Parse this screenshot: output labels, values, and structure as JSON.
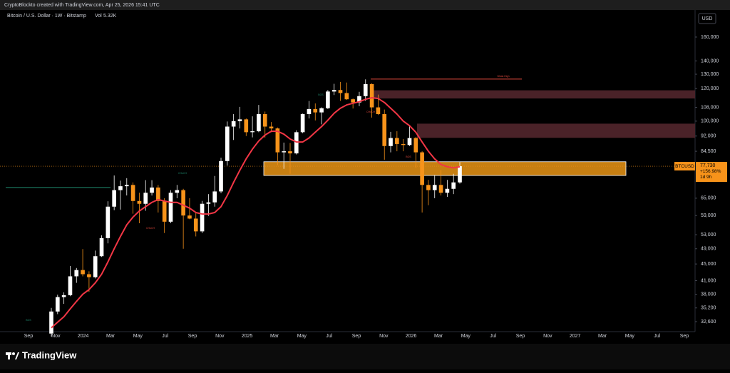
{
  "header": {
    "credit": "CryptoBlockto created with TradingView.com, Apr 25, 2026 15:41 UTC"
  },
  "footer": {
    "brand": "TradingView"
  },
  "chart_data": {
    "type": "candlestick",
    "title": "Bitcoin / U.S. Dollar · 1W · Bitstamp",
    "volume_label": "Vol",
    "volume_value": "5.32K",
    "currency": "USD",
    "log_scale": true,
    "grid": false,
    "candle_colors": {
      "up": "#ffffff",
      "down": "#f7931a"
    },
    "x_labels": [
      "Sep",
      "Nov",
      "2024",
      "Mar",
      "May",
      "Jul",
      "Sep",
      "Nov",
      "2025",
      "Mar",
      "May",
      "Jul",
      "Sep",
      "Nov",
      "2026",
      "Mar",
      "May",
      "Jul",
      "Sep",
      "Nov",
      "2027",
      "Mar",
      "May",
      "Jul",
      "Sep"
    ],
    "ylim": [
      31200,
      183200
    ],
    "yticks": [
      {
        "value": 160000,
        "label": "160,000"
      },
      {
        "value": 140000,
        "label": "140,000"
      },
      {
        "value": 130000,
        "label": "130,000"
      },
      {
        "value": 120000,
        "label": "120,000"
      },
      {
        "value": 108000,
        "label": "108,000"
      },
      {
        "value": 100000,
        "label": "100,000"
      },
      {
        "value": 92000,
        "label": "92,000"
      },
      {
        "value": 84500,
        "label": "84,500"
      },
      {
        "value": 65000,
        "label": "65,000"
      },
      {
        "value": 59000,
        "label": "59,000"
      },
      {
        "value": 53000,
        "label": "53,000"
      },
      {
        "value": 49000,
        "label": "49,000"
      },
      {
        "value": 45000,
        "label": "45,000"
      },
      {
        "value": 41000,
        "label": "41,000"
      },
      {
        "value": 38000,
        "label": "38,000"
      },
      {
        "value": 35200,
        "label": "35,200"
      },
      {
        "value": 32600,
        "label": "32,600"
      }
    ],
    "ohlc": [
      [
        30500,
        35200,
        30000,
        34500
      ],
      [
        34500,
        37900,
        34000,
        37400
      ],
      [
        37400,
        38400,
        36000,
        37800
      ],
      [
        37800,
        44500,
        37600,
        42000
      ],
      [
        42000,
        44000,
        40500,
        43500
      ],
      [
        43500,
        48900,
        42000,
        42500
      ],
      [
        42500,
        43200,
        38500,
        41800
      ],
      [
        41800,
        48500,
        41500,
        47000
      ],
      [
        47000,
        52800,
        46800,
        52000
      ],
      [
        52000,
        63900,
        50500,
        62000
      ],
      [
        62000,
        73800,
        60800,
        68000
      ],
      [
        68000,
        71700,
        61000,
        69500
      ],
      [
        69500,
        72700,
        66000,
        70000
      ],
      [
        70000,
        71000,
        59600,
        64000
      ],
      [
        64000,
        67000,
        56500,
        63000
      ],
      [
        63000,
        71900,
        60600,
        67000
      ],
      [
        67000,
        71900,
        66000,
        69000
      ],
      [
        69000,
        70000,
        60000,
        64000
      ],
      [
        64000,
        65000,
        53500,
        57000
      ],
      [
        57000,
        68000,
        56500,
        67000
      ],
      [
        67000,
        70000,
        65000,
        68000
      ],
      [
        68000,
        68500,
        49000,
        59000
      ],
      [
        59000,
        65000,
        57800,
        58000
      ],
      [
        58000,
        60000,
        52500,
        54000
      ],
      [
        54000,
        64000,
        53500,
        63000
      ],
      [
        63000,
        66500,
        58900,
        63500
      ],
      [
        63500,
        73600,
        62000,
        67500
      ],
      [
        67500,
        81500,
        66800,
        80000
      ],
      [
        80000,
        99800,
        78000,
        97000
      ],
      [
        97000,
        104000,
        90000,
        100000
      ],
      [
        100000,
        108300,
        96000,
        101000
      ],
      [
        101000,
        101500,
        92000,
        94000
      ],
      [
        94000,
        102700,
        91300,
        94500
      ],
      [
        94500,
        109500,
        94000,
        104000
      ],
      [
        104000,
        105500,
        91200,
        97000
      ],
      [
        97000,
        99500,
        94000,
        96000
      ],
      [
        96000,
        96500,
        78200,
        84000
      ],
      [
        84000,
        88700,
        76600,
        84500
      ],
      [
        84500,
        88500,
        74500,
        83500
      ],
      [
        83500,
        95000,
        83000,
        94000
      ],
      [
        94000,
        104300,
        93500,
        104000
      ],
      [
        104000,
        111900,
        101500,
        107000
      ],
      [
        107000,
        110400,
        100400,
        105000
      ],
      [
        105000,
        108000,
        98200,
        107500
      ],
      [
        107500,
        119000,
        107000,
        118000
      ],
      [
        118000,
        123200,
        115700,
        119000
      ],
      [
        119000,
        124500,
        112000,
        117000
      ],
      [
        117000,
        124100,
        112600,
        113000
      ],
      [
        113000,
        113500,
        107300,
        111000
      ],
      [
        111000,
        117800,
        108700,
        115000
      ],
      [
        115000,
        126300,
        112000,
        123000
      ],
      [
        123000,
        123500,
        102000,
        108000
      ],
      [
        108000,
        116000,
        103500,
        104000
      ],
      [
        104000,
        106700,
        80600,
        87000
      ],
      [
        87000,
        94200,
        84000,
        91000
      ],
      [
        91000,
        94500,
        84500,
        88000
      ],
      [
        88000,
        90500,
        84500,
        87500
      ],
      [
        87500,
        97900,
        87000,
        91000
      ],
      [
        91000,
        91500,
        77000,
        84000
      ],
      [
        84000,
        84500,
        60000,
        70000
      ],
      [
        70000,
        72000,
        62500,
        68000
      ],
      [
        68000,
        74000,
        65000,
        70000
      ],
      [
        70000,
        76000,
        66000,
        67000
      ],
      [
        67000,
        72000,
        65500,
        68500
      ],
      [
        68500,
        74500,
        66500,
        71000
      ],
      [
        71000,
        79500,
        70500,
        77730
      ]
    ],
    "moving_average": {
      "color": "#f23645",
      "values": [
        31500,
        32500,
        33500,
        35000,
        36500,
        38000,
        39000,
        40500,
        42500,
        45500,
        49000,
        52500,
        56000,
        58500,
        60500,
        62000,
        63500,
        64500,
        64000,
        63500,
        63500,
        62500,
        61500,
        60000,
        59500,
        59500,
        60000,
        62000,
        66000,
        71000,
        76000,
        81000,
        85500,
        89500,
        92500,
        94500,
        94500,
        93000,
        90500,
        89000,
        89000,
        91000,
        94000,
        97000,
        100500,
        104500,
        107500,
        109500,
        110500,
        111500,
        113000,
        114000,
        113500,
        111000,
        107500,
        104000,
        100000,
        97500,
        94000,
        89000,
        84500,
        81000,
        78500,
        77500,
        77000,
        77500
      ]
    },
    "zones": [
      {
        "low": 113500,
        "high": 118800,
        "color": "#4a2228"
      },
      {
        "low": 91100,
        "high": 98600,
        "color": "#4a2228"
      },
      {
        "low": 73800,
        "high": 79700,
        "color": "#c77f12"
      }
    ],
    "levels": [
      {
        "value": 126500,
        "label": "Weak High",
        "color": "#e0483c"
      },
      {
        "value": 69000,
        "color": "#1f8a6e"
      }
    ],
    "annotations": [
      "BOS",
      "CHoCH",
      "CHoCH",
      "BOS",
      "CHoCH",
      "BOS"
    ],
    "last_price": {
      "symbol": "BTCUSD",
      "value": 77730,
      "value_label": "77,730",
      "change": "+156.98%",
      "countdown": "1d 9h"
    }
  }
}
